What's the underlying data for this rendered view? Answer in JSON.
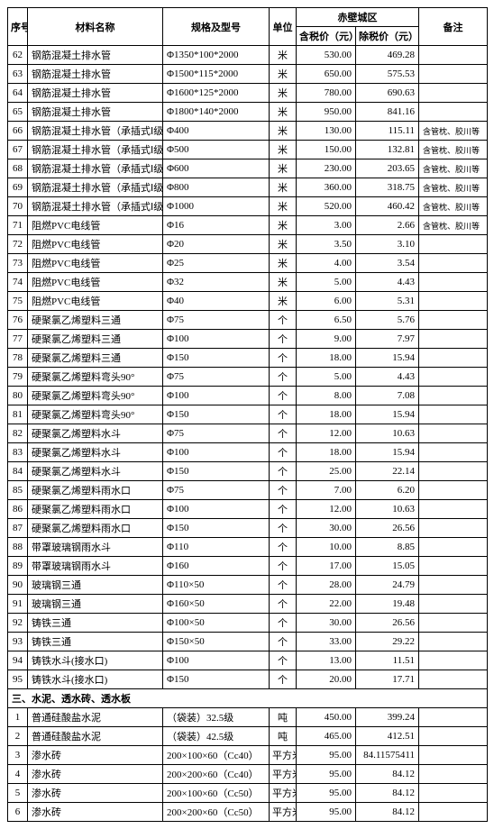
{
  "header": {
    "seq": "序号",
    "name": "材料名称",
    "spec": "规格及型号",
    "unit": "单位",
    "region": "赤壁城区",
    "price_incl": "含税价（元）",
    "price_excl": "除税价（元）",
    "remark": "备注"
  },
  "section_title": "三、水泥、透水砖、透水板",
  "rows": [
    {
      "seq": "62",
      "name": "钢筋混凝土排水管",
      "spec": "Φ1350*100*2000",
      "unit": "米",
      "pincl": "530.00",
      "pexcl": "469.28",
      "rem": ""
    },
    {
      "seq": "63",
      "name": "钢筋混凝土排水管",
      "spec": "Φ1500*115*2000",
      "unit": "米",
      "pincl": "650.00",
      "pexcl": "575.53",
      "rem": ""
    },
    {
      "seq": "64",
      "name": "钢筋混凝土排水管",
      "spec": "Φ1600*125*2000",
      "unit": "米",
      "pincl": "780.00",
      "pexcl": "690.63",
      "rem": ""
    },
    {
      "seq": "65",
      "name": "钢筋混凝土排水管",
      "spec": "Φ1800*140*2000",
      "unit": "米",
      "pincl": "950.00",
      "pexcl": "841.16",
      "rem": ""
    },
    {
      "seq": "66",
      "name": "钢筋混凝土排水管（承插式Ⅰ级）",
      "spec": "Φ400",
      "unit": "米",
      "pincl": "130.00",
      "pexcl": "115.11",
      "rem": "含管枕、胶川等"
    },
    {
      "seq": "67",
      "name": "钢筋混凝土排水管（承插式Ⅰ级）",
      "spec": "Φ500",
      "unit": "米",
      "pincl": "150.00",
      "pexcl": "132.81",
      "rem": "含管枕、胶川等"
    },
    {
      "seq": "68",
      "name": "钢筋混凝土排水管（承插式Ⅰ级）",
      "spec": "Φ600",
      "unit": "米",
      "pincl": "230.00",
      "pexcl": "203.65",
      "rem": "含管枕、胶川等"
    },
    {
      "seq": "69",
      "name": "钢筋混凝土排水管（承插式Ⅰ级）",
      "spec": "Φ800",
      "unit": "米",
      "pincl": "360.00",
      "pexcl": "318.75",
      "rem": "含管枕、胶川等"
    },
    {
      "seq": "70",
      "name": "钢筋混凝土排水管（承插式Ⅰ级）",
      "spec": "Φ1000",
      "unit": "米",
      "pincl": "520.00",
      "pexcl": "460.42",
      "rem": "含管枕、胶川等"
    },
    {
      "seq": "71",
      "name": "阻燃PVC电线管",
      "spec": "Φ16",
      "unit": "米",
      "pincl": "3.00",
      "pexcl": "2.66",
      "rem": "含管枕、胶川等"
    },
    {
      "seq": "72",
      "name": "阻燃PVC电线管",
      "spec": "Φ20",
      "unit": "米",
      "pincl": "3.50",
      "pexcl": "3.10",
      "rem": ""
    },
    {
      "seq": "73",
      "name": "阻燃PVC电线管",
      "spec": "Φ25",
      "unit": "米",
      "pincl": "4.00",
      "pexcl": "3.54",
      "rem": ""
    },
    {
      "seq": "74",
      "name": "阻燃PVC电线管",
      "spec": "Φ32",
      "unit": "米",
      "pincl": "5.00",
      "pexcl": "4.43",
      "rem": ""
    },
    {
      "seq": "75",
      "name": "阻燃PVC电线管",
      "spec": "Φ40",
      "unit": "米",
      "pincl": "6.00",
      "pexcl": "5.31",
      "rem": ""
    },
    {
      "seq": "76",
      "name": "硬聚氯乙烯塑料三通",
      "spec": "Φ75",
      "unit": "个",
      "pincl": "6.50",
      "pexcl": "5.76",
      "rem": ""
    },
    {
      "seq": "77",
      "name": "硬聚氯乙烯塑料三通",
      "spec": "Φ100",
      "unit": "个",
      "pincl": "9.00",
      "pexcl": "7.97",
      "rem": ""
    },
    {
      "seq": "78",
      "name": "硬聚氯乙烯塑料三通",
      "spec": "Φ150",
      "unit": "个",
      "pincl": "18.00",
      "pexcl": "15.94",
      "rem": ""
    },
    {
      "seq": "79",
      "name": "硬聚氯乙烯塑料弯头90°",
      "spec": "Φ75",
      "unit": "个",
      "pincl": "5.00",
      "pexcl": "4.43",
      "rem": ""
    },
    {
      "seq": "80",
      "name": "硬聚氯乙烯塑料弯头90°",
      "spec": "Φ100",
      "unit": "个",
      "pincl": "8.00",
      "pexcl": "7.08",
      "rem": ""
    },
    {
      "seq": "81",
      "name": "硬聚氯乙烯塑料弯头90°",
      "spec": "Φ150",
      "unit": "个",
      "pincl": "18.00",
      "pexcl": "15.94",
      "rem": ""
    },
    {
      "seq": "82",
      "name": "硬聚氯乙烯塑料水斗",
      "spec": "Φ75",
      "unit": "个",
      "pincl": "12.00",
      "pexcl": "10.63",
      "rem": ""
    },
    {
      "seq": "83",
      "name": "硬聚氯乙烯塑料水斗",
      "spec": "Φ100",
      "unit": "个",
      "pincl": "18.00",
      "pexcl": "15.94",
      "rem": ""
    },
    {
      "seq": "84",
      "name": "硬聚氯乙烯塑料水斗",
      "spec": "Φ150",
      "unit": "个",
      "pincl": "25.00",
      "pexcl": "22.14",
      "rem": ""
    },
    {
      "seq": "85",
      "name": "硬聚氯乙烯塑料雨水口",
      "spec": "Φ75",
      "unit": "个",
      "pincl": "7.00",
      "pexcl": "6.20",
      "rem": ""
    },
    {
      "seq": "86",
      "name": "硬聚氯乙烯塑料雨水口",
      "spec": "Φ100",
      "unit": "个",
      "pincl": "12.00",
      "pexcl": "10.63",
      "rem": ""
    },
    {
      "seq": "87",
      "name": "硬聚氯乙烯塑料雨水口",
      "spec": "Φ150",
      "unit": "个",
      "pincl": "30.00",
      "pexcl": "26.56",
      "rem": ""
    },
    {
      "seq": "88",
      "name": "带罩玻璃钢雨水斗",
      "spec": "Φ110",
      "unit": "个",
      "pincl": "10.00",
      "pexcl": "8.85",
      "rem": ""
    },
    {
      "seq": "89",
      "name": "带罩玻璃钢雨水斗",
      "spec": "Φ160",
      "unit": "个",
      "pincl": "17.00",
      "pexcl": "15.05",
      "rem": ""
    },
    {
      "seq": "90",
      "name": "玻璃钢三通",
      "spec": "Φ110×50",
      "unit": "个",
      "pincl": "28.00",
      "pexcl": "24.79",
      "rem": ""
    },
    {
      "seq": "91",
      "name": "玻璃钢三通",
      "spec": "Φ160×50",
      "unit": "个",
      "pincl": "22.00",
      "pexcl": "19.48",
      "rem": ""
    },
    {
      "seq": "92",
      "name": "铸铁三通",
      "spec": "Φ100×50",
      "unit": "个",
      "pincl": "30.00",
      "pexcl": "26.56",
      "rem": ""
    },
    {
      "seq": "93",
      "name": "铸铁三通",
      "spec": "Φ150×50",
      "unit": "个",
      "pincl": "33.00",
      "pexcl": "29.22",
      "rem": ""
    },
    {
      "seq": "94",
      "name": "铸铁水斗(接水口)",
      "spec": "Φ100",
      "unit": "个",
      "pincl": "13.00",
      "pexcl": "11.51",
      "rem": ""
    },
    {
      "seq": "95",
      "name": "铸铁水斗(接水口)",
      "spec": "Φ150",
      "unit": "个",
      "pincl": "20.00",
      "pexcl": "17.71",
      "rem": ""
    }
  ],
  "rows2": [
    {
      "seq": "1",
      "name": "普通硅酸盐水泥",
      "spec": "（袋装）32.5级",
      "unit": "吨",
      "pincl": "450.00",
      "pexcl": "399.24",
      "rem": ""
    },
    {
      "seq": "2",
      "name": "普通硅酸盐水泥",
      "spec": "（袋装）42.5级",
      "unit": "吨",
      "pincl": "465.00",
      "pexcl": "412.51",
      "rem": ""
    },
    {
      "seq": "3",
      "name": "渗水砖",
      "spec": "200×100×60（Cc40）",
      "unit": "平方米",
      "pincl": "95.00",
      "pexcl": "84.11575411",
      "rem": ""
    },
    {
      "seq": "4",
      "name": "渗水砖",
      "spec": "200×200×60（Cc40）",
      "unit": "平方米",
      "pincl": "95.00",
      "pexcl": "84.12",
      "rem": ""
    },
    {
      "seq": "5",
      "name": "渗水砖",
      "spec": "200×100×60（Cc50）",
      "unit": "平方米",
      "pincl": "95.00",
      "pexcl": "84.12",
      "rem": ""
    },
    {
      "seq": "6",
      "name": "渗水砖",
      "spec": "200×200×60（Cc50）",
      "unit": "平方米",
      "pincl": "95.00",
      "pexcl": "84.12",
      "rem": ""
    }
  ]
}
